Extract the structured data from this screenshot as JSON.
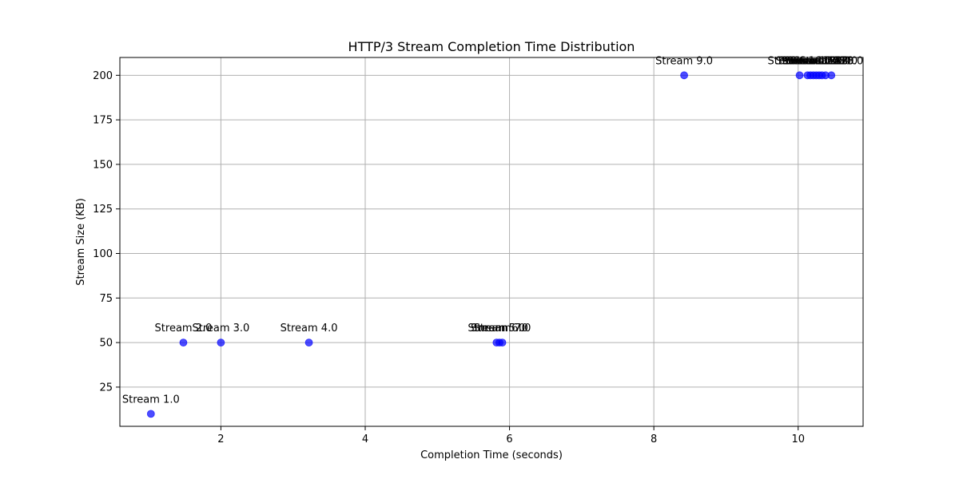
{
  "chart_data": {
    "type": "scatter",
    "title": "HTTP/3 Stream Completion Time Distribution",
    "xlabel": "Completion Time (seconds)",
    "ylabel": "Stream Size (KB)",
    "xlim": [
      0.6,
      10.9
    ],
    "ylim": [
      3,
      210
    ],
    "xticks": [
      2,
      4,
      6,
      8,
      10
    ],
    "yticks": [
      25,
      50,
      75,
      100,
      125,
      150,
      175,
      200
    ],
    "grid": true,
    "marker_color": "#0000ff",
    "points": [
      {
        "label": "Stream 1.0",
        "x": 1.03,
        "y": 10
      },
      {
        "label": "Stream 2.0",
        "x": 1.48,
        "y": 50
      },
      {
        "label": "Stream 3.0",
        "x": 2.0,
        "y": 50
      },
      {
        "label": "Stream 4.0",
        "x": 3.22,
        "y": 50
      },
      {
        "label": "Stream 5.0",
        "x": 5.82,
        "y": 50
      },
      {
        "label": "Stream 6.0",
        "x": 5.86,
        "y": 50
      },
      {
        "label": "Stream 7.0",
        "x": 5.9,
        "y": 50
      },
      {
        "label": "Stream 9.0",
        "x": 8.42,
        "y": 200
      },
      {
        "label": "Stream 10.0",
        "x": 10.02,
        "y": 200
      },
      {
        "label": "Stream 11.0",
        "x": 10.13,
        "y": 200
      },
      {
        "label": "Stream 12.0",
        "x": 10.17,
        "y": 200
      },
      {
        "label": "Stream 13.0",
        "x": 10.21,
        "y": 200
      },
      {
        "label": "Stream 14.0",
        "x": 10.25,
        "y": 200
      },
      {
        "label": "Stream 15.0",
        "x": 10.29,
        "y": 200
      },
      {
        "label": "Stream 16.0",
        "x": 10.33,
        "y": 200
      },
      {
        "label": "Stream 17.0",
        "x": 10.38,
        "y": 200
      },
      {
        "label": "Stream 18.0",
        "x": 10.46,
        "y": 200
      }
    ]
  }
}
